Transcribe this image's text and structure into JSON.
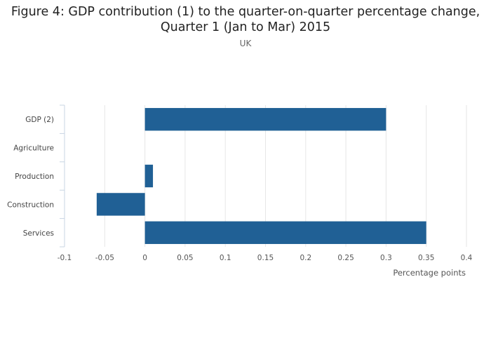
{
  "title_line1": "Figure 4: GDP contribution (1) to the quarter-on-quarter percentage change,",
  "title_line2": "Quarter 1 (Jan to Mar) 2015",
  "subtitle": "UK",
  "chart_data": {
    "type": "bar",
    "orientation": "horizontal",
    "title": "Figure 4: GDP contribution (1) to the quarter-on-quarter percentage change, Quarter 1 (Jan to Mar) 2015",
    "subtitle": "UK",
    "categories": [
      "GDP (2)",
      "Agriculture",
      "Production",
      "Construction",
      "Services"
    ],
    "values": [
      0.3,
      0.0,
      0.01,
      -0.06,
      0.35
    ],
    "xlabel": "Percentage points",
    "ylabel": "",
    "xlim": [
      -0.1,
      0.4
    ],
    "xticks": [
      -0.1,
      -0.05,
      0,
      0.05,
      0.1,
      0.15,
      0.2,
      0.25,
      0.3,
      0.35,
      0.4
    ],
    "xtick_labels": [
      "-0.1",
      "-0.05",
      "0",
      "0.05",
      "0.1",
      "0.15",
      "0.2",
      "0.25",
      "0.3",
      "0.35",
      "0.4"
    ],
    "bar_color": "#206095",
    "grid": true
  }
}
